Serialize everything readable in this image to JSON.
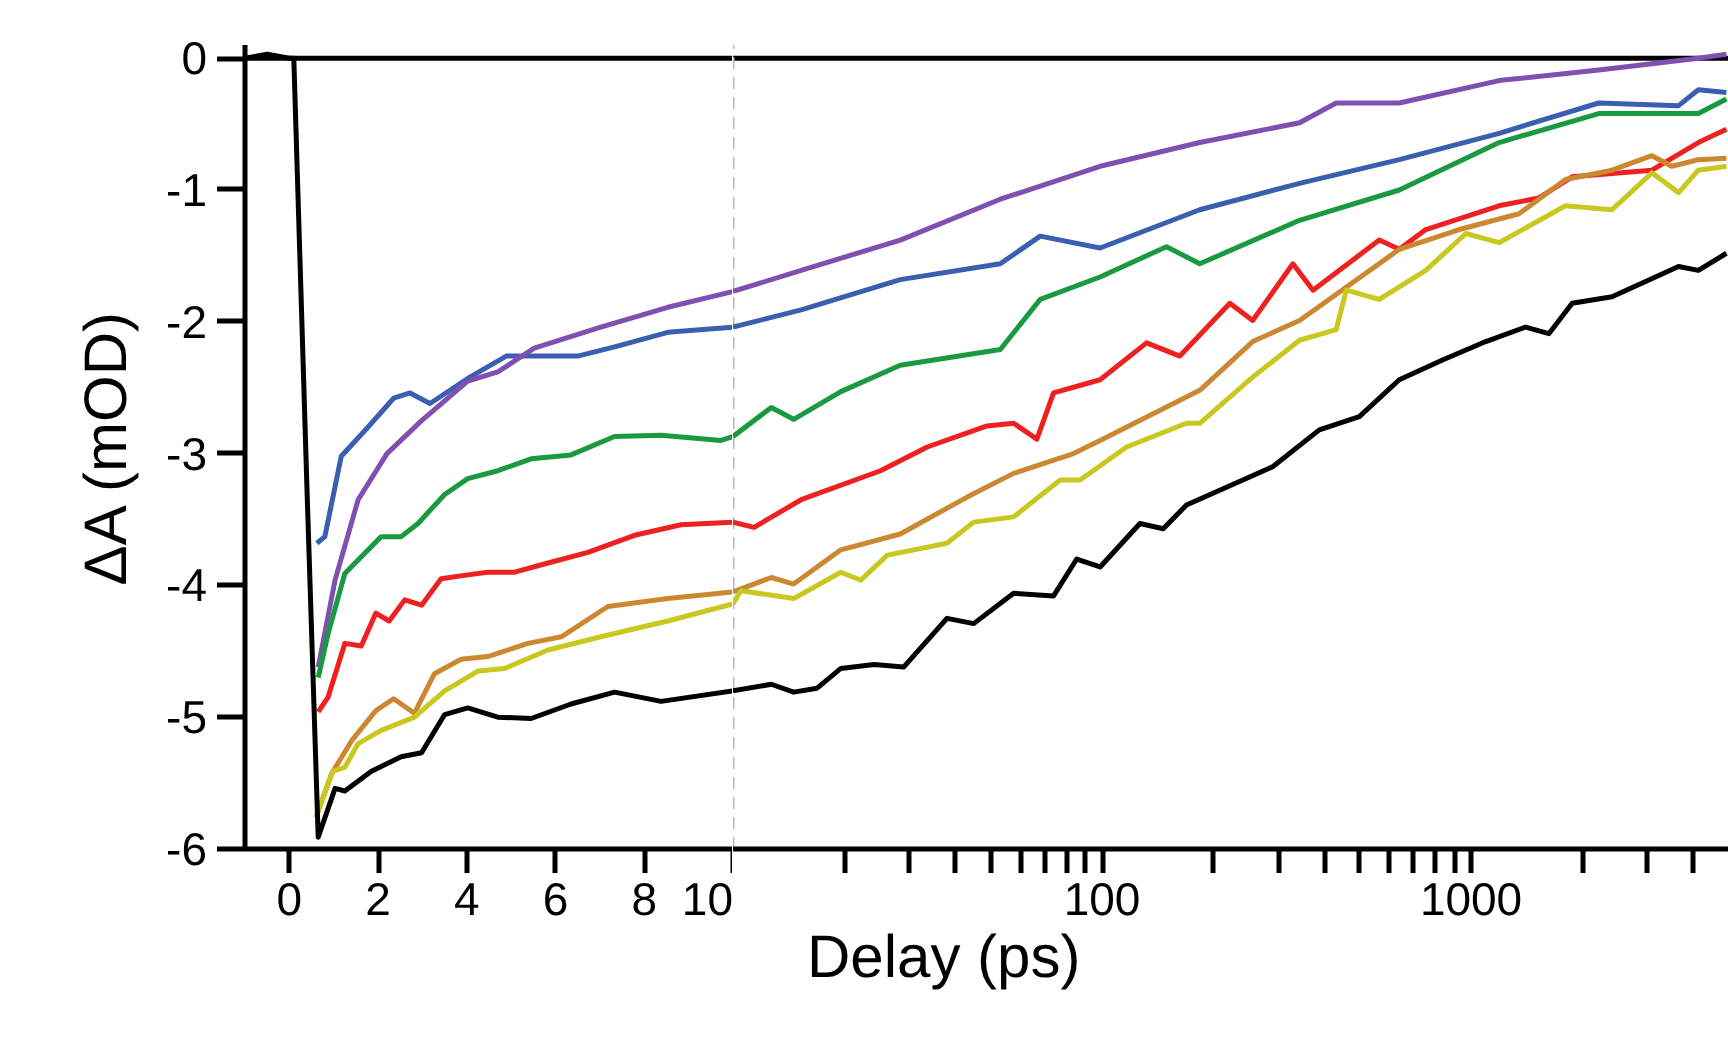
{
  "chart_data": [
    {
      "type": "line",
      "ylabel": "ΔA (mOD)",
      "xlim": [
        -1,
        10
      ],
      "ylim": [
        -6,
        0.1
      ],
      "xticks": [
        0,
        2,
        4,
        6,
        8,
        10
      ],
      "yticks": [
        -6,
        -5,
        -4,
        -3,
        -2,
        -1,
        0
      ],
      "grid": false,
      "line_style": "solid",
      "ref_lines": [
        {
          "axis": "y",
          "value": 0,
          "color": "#000000",
          "line_style": "solid"
        }
      ],
      "series": [
        {
          "color": "#3a5fb0",
          "x": [
            0.62,
            0.8,
            1.17,
            1.77,
            2.35,
            2.72,
            3.17,
            4.02,
            4.89,
            6.5,
            7.33,
            8.53,
            10
          ],
          "values": [
            -3.68,
            -3.63,
            -3.02,
            -2.8,
            -2.58,
            -2.54,
            -2.62,
            -2.43,
            -2.26,
            -2.26,
            -2.19,
            -2.08,
            -2.04
          ]
        },
        {
          "color": "#7f50b0",
          "x": [
            0.65,
            1.03,
            1.55,
            2.2,
            2.98,
            4.02,
            4.7,
            5.52,
            7.02,
            8.53,
            10
          ],
          "values": [
            -4.62,
            -3.96,
            -3.35,
            -3.0,
            -2.75,
            -2.45,
            -2.38,
            -2.2,
            -2.04,
            -1.89,
            -1.77
          ]
        },
        {
          "color": "#1a9a40",
          "x": [
            0.65,
            0.87,
            1.25,
            2.07,
            2.52,
            2.9,
            3.5,
            4.02,
            4.7,
            5.45,
            6.35,
            7.33,
            8.38,
            9.73,
            10
          ],
          "values": [
            -4.7,
            -4.37,
            -3.91,
            -3.63,
            -3.63,
            -3.53,
            -3.31,
            -3.19,
            -3.13,
            -3.04,
            -3.01,
            -2.87,
            -2.86,
            -2.9,
            -2.87
          ]
        },
        {
          "color": "#ee2020",
          "x": [
            0.65,
            0.87,
            1.25,
            1.62,
            1.95,
            2.25,
            2.6,
            2.98,
            3.42,
            4.02,
            4.47,
            5.08,
            5.83,
            6.73,
            7.78,
            8.83,
            10
          ],
          "values": [
            -4.96,
            -4.85,
            -4.44,
            -4.46,
            -4.21,
            -4.27,
            -4.11,
            -4.15,
            -3.95,
            -3.92,
            -3.9,
            -3.9,
            -3.83,
            -3.75,
            -3.62,
            -3.54,
            -3.52
          ]
        },
        {
          "color": "#cc8830",
          "x": [
            0.6,
            0.95,
            1.4,
            1.95,
            2.35,
            2.82,
            3.27,
            3.87,
            4.47,
            5.38,
            6.13,
            7.18,
            8.53,
            10
          ],
          "values": [
            -5.76,
            -5.43,
            -5.18,
            -4.95,
            -4.86,
            -4.97,
            -4.67,
            -4.56,
            -4.54,
            -4.44,
            -4.39,
            -4.16,
            -4.1,
            -4.05
          ]
        },
        {
          "color": "#c8c820",
          "x": [
            0.6,
            0.98,
            1.25,
            1.55,
            2.07,
            2.82,
            3.5,
            4.25,
            4.85,
            5.83,
            7.02,
            8.53,
            10
          ],
          "values": [
            -5.76,
            -5.41,
            -5.38,
            -5.2,
            -5.1,
            -5.0,
            -4.8,
            -4.65,
            -4.63,
            -4.49,
            -4.39,
            -4.27,
            -4.14
          ]
        },
        {
          "color": "#000000",
          "x": [
            -1,
            -0.5,
            0,
            0.1,
            0.4,
            0.65,
            1.03,
            1.25,
            1.85,
            2.52,
            2.98,
            3.5,
            4.02,
            4.7,
            5.45,
            6.35,
            7.33,
            8.38,
            10
          ],
          "values": [
            0,
            0.03,
            0,
            0,
            -3.3,
            -5.91,
            -5.54,
            -5.56,
            -5.41,
            -5.3,
            -5.27,
            -4.98,
            -4.93,
            -5.0,
            -5.01,
            -4.9,
            -4.81,
            -4.88,
            -4.8
          ]
        }
      ]
    },
    {
      "type": "line",
      "xlabel": "Delay (ps)",
      "log": "x",
      "xlim": [
        10,
        5000
      ],
      "ylim": [
        -6,
        0.1
      ],
      "xticks": [
        {
          "value": 20,
          "label": null
        },
        {
          "value": 30,
          "label": null
        },
        {
          "value": 40,
          "label": null
        },
        {
          "value": 50,
          "label": null
        },
        {
          "value": 60,
          "label": null
        },
        {
          "value": 70,
          "label": null
        },
        {
          "value": 80,
          "label": null
        },
        {
          "value": 90,
          "label": null
        },
        100,
        {
          "value": 200,
          "label": null
        },
        {
          "value": 300,
          "label": null
        },
        {
          "value": 400,
          "label": null
        },
        {
          "value": 500,
          "label": null
        },
        {
          "value": 600,
          "label": null
        },
        {
          "value": 700,
          "label": null
        },
        {
          "value": 800,
          "label": null
        },
        {
          "value": 900,
          "label": null
        },
        1000,
        {
          "value": 2000,
          "label": null
        },
        {
          "value": 3000,
          "label": null
        },
        {
          "value": 4000,
          "label": null
        }
      ],
      "yticks": [
        -6,
        -5,
        -4,
        -3,
        -2,
        -1,
        0
      ],
      "tick_labels": "x",
      "grid": false,
      "line_style": "solid",
      "ref_lines": [
        {
          "axis": "y",
          "value": 0,
          "color": "#000000",
          "line_style": "solid"
        },
        {
          "axis": "x",
          "value": 10,
          "color": "#b8b8b8",
          "line_style": "dashed"
        }
      ],
      "series": [
        {
          "color": "#3a5fb0",
          "x": [
            10,
            15.3,
            28.4,
            53.0,
            68.0,
            98.8,
            184,
            343,
            639,
            1191,
            2218,
            3650,
            4130,
            4920
          ],
          "values": [
            -2.04,
            -1.91,
            -1.68,
            -1.56,
            -1.35,
            -1.44,
            -1.15,
            -0.95,
            -0.77,
            -0.57,
            -0.34,
            -0.36,
            -0.24,
            -0.26
          ]
        },
        {
          "color": "#7f50b0",
          "x": [
            10,
            15.3,
            28.4,
            53.0,
            98.8,
            184,
            343,
            431,
            639,
            1191,
            2218,
            4130,
            4920
          ],
          "values": [
            -1.77,
            -1.61,
            -1.38,
            -1.07,
            -0.82,
            -0.64,
            -0.49,
            -0.34,
            -0.34,
            -0.17,
            -0.09,
            0.0,
            0.03
          ]
        },
        {
          "color": "#1a9a40",
          "x": [
            10,
            12.7,
            14.6,
            19.6,
            28.4,
            53.0,
            68.0,
            98.8,
            149.5,
            184,
            343,
            639,
            1191,
            2218,
            4130,
            4920
          ],
          "values": [
            -2.87,
            -2.65,
            -2.74,
            -2.53,
            -2.33,
            -2.21,
            -1.83,
            -1.66,
            -1.43,
            -1.56,
            -1.23,
            -1.0,
            -0.64,
            -0.42,
            -0.42,
            -0.31
          ]
        },
        {
          "color": "#ee2020",
          "x": [
            10,
            11.4,
            15.3,
            25.1,
            33.6,
            48.8,
            57.6,
            66.6,
            73.9,
            98.8,
            132,
            162.5,
            222,
            256,
            329,
            373,
            564,
            639,
            754,
            1191,
            1527,
            1879,
            3090,
            4130,
            4920
          ],
          "values": [
            -3.52,
            -3.56,
            -3.35,
            -3.13,
            -2.95,
            -2.79,
            -2.77,
            -2.89,
            -2.54,
            -2.44,
            -2.16,
            -2.26,
            -1.86,
            -1.99,
            -1.56,
            -1.76,
            -1.38,
            -1.45,
            -1.3,
            -1.12,
            -1.06,
            -0.9,
            -0.85,
            -0.64,
            -0.54
          ]
        },
        {
          "color": "#cc8830",
          "x": [
            10,
            12.7,
            14.6,
            19.6,
            28.4,
            43.1,
            57.6,
            83.7,
            98.8,
            184,
            256,
            343,
            639,
            929,
            1349,
            1803,
            2410,
            3090,
            3500,
            4130,
            4920
          ],
          "values": [
            -4.05,
            -3.94,
            -3.99,
            -3.73,
            -3.61,
            -3.33,
            -3.15,
            -3.0,
            -2.9,
            -2.52,
            -2.15,
            -1.99,
            -1.45,
            -1.3,
            -1.18,
            -0.92,
            -0.85,
            -0.74,
            -0.82,
            -0.77,
            -0.76
          ]
        },
        {
          "color": "#c8c820",
          "x": [
            10,
            10.5,
            14.6,
            19.6,
            22.2,
            26.2,
            38.0,
            44.9,
            57.6,
            77.0,
            87.2,
            116.6,
            169.4,
            184,
            256,
            343,
            431,
            459,
            564,
            754,
            968,
            1191,
            1803,
            2410,
            3090,
            3650,
            4130,
            4920
          ],
          "values": [
            -4.14,
            -4.04,
            -4.1,
            -3.9,
            -3.96,
            -3.77,
            -3.68,
            -3.52,
            -3.48,
            -3.2,
            -3.2,
            -2.95,
            -2.77,
            -2.77,
            -2.42,
            -2.14,
            -2.06,
            -1.76,
            -1.83,
            -1.61,
            -1.33,
            -1.4,
            -1.12,
            -1.15,
            -0.87,
            -1.02,
            -0.85,
            -0.82
          ]
        },
        {
          "color": "#000000",
          "x": [
            10,
            12.7,
            14.6,
            16.9,
            19.6,
            24.1,
            29.0,
            38.0,
            44.9,
            57.6,
            73.9,
            85.4,
            98.8,
            126.7,
            146.5,
            169.4,
            290,
            388,
            498,
            639,
            837,
            1096,
            1406,
            1625,
            1879,
            2410,
            3650,
            4130,
            4920
          ],
          "values": [
            -4.8,
            -4.75,
            -4.81,
            -4.78,
            -4.63,
            -4.6,
            -4.62,
            -4.25,
            -4.29,
            -4.06,
            -4.08,
            -3.8,
            -3.86,
            -3.53,
            -3.57,
            -3.39,
            -3.1,
            -2.82,
            -2.72,
            -2.44,
            -2.29,
            -2.15,
            -2.04,
            -2.09,
            -1.86,
            -1.81,
            -1.58,
            -1.61,
            -1.48
          ]
        }
      ]
    }
  ]
}
